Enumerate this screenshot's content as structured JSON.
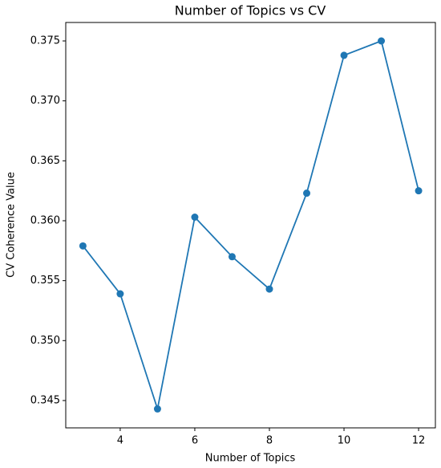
{
  "chart_data": {
    "type": "line",
    "title": "Number of Topics vs CV",
    "x_label": "Number of Topics",
    "y_label": "CV Coherence Value",
    "x": [
      3,
      4,
      5,
      6,
      7,
      8,
      9,
      10,
      11,
      12
    ],
    "series": [
      {
        "color": "#1f77b4",
        "values": [
          0.3579,
          0.3539,
          0.3443,
          0.3603,
          0.357,
          0.3543,
          0.3623,
          0.3738,
          0.375,
          0.3625
        ]
      }
    ],
    "xlim": [
      2.54,
      12.45
    ],
    "xticks": [
      4,
      6,
      8,
      10,
      12
    ],
    "ylim": [
      0.34272,
      0.37654
    ],
    "yticks": [
      0.345,
      {
        "value": 0.35,
        "label": "0.350"
      },
      0.355,
      {
        "value": 0.36,
        "label": "0.360"
      },
      0.365,
      {
        "value": 0.37,
        "label": "0.370"
      },
      0.375
    ],
    "grid": false
  }
}
